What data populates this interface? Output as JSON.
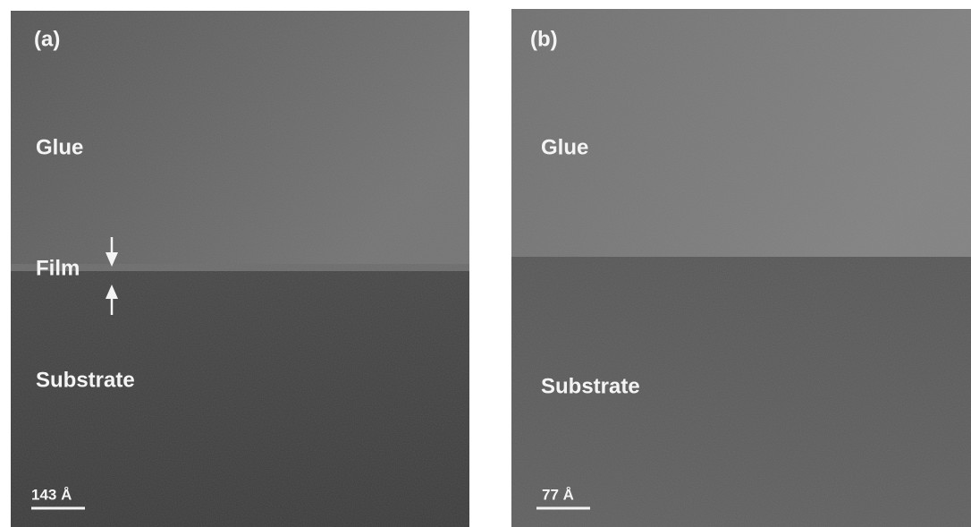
{
  "panels": [
    {
      "label": "(a)",
      "glue": "Glue",
      "film": "Film",
      "substrate": "Substrate",
      "scale_bar": "143 Å"
    },
    {
      "label": "(b)",
      "glue": "Glue",
      "substrate": "Substrate",
      "scale_bar": "77 Å"
    }
  ]
}
